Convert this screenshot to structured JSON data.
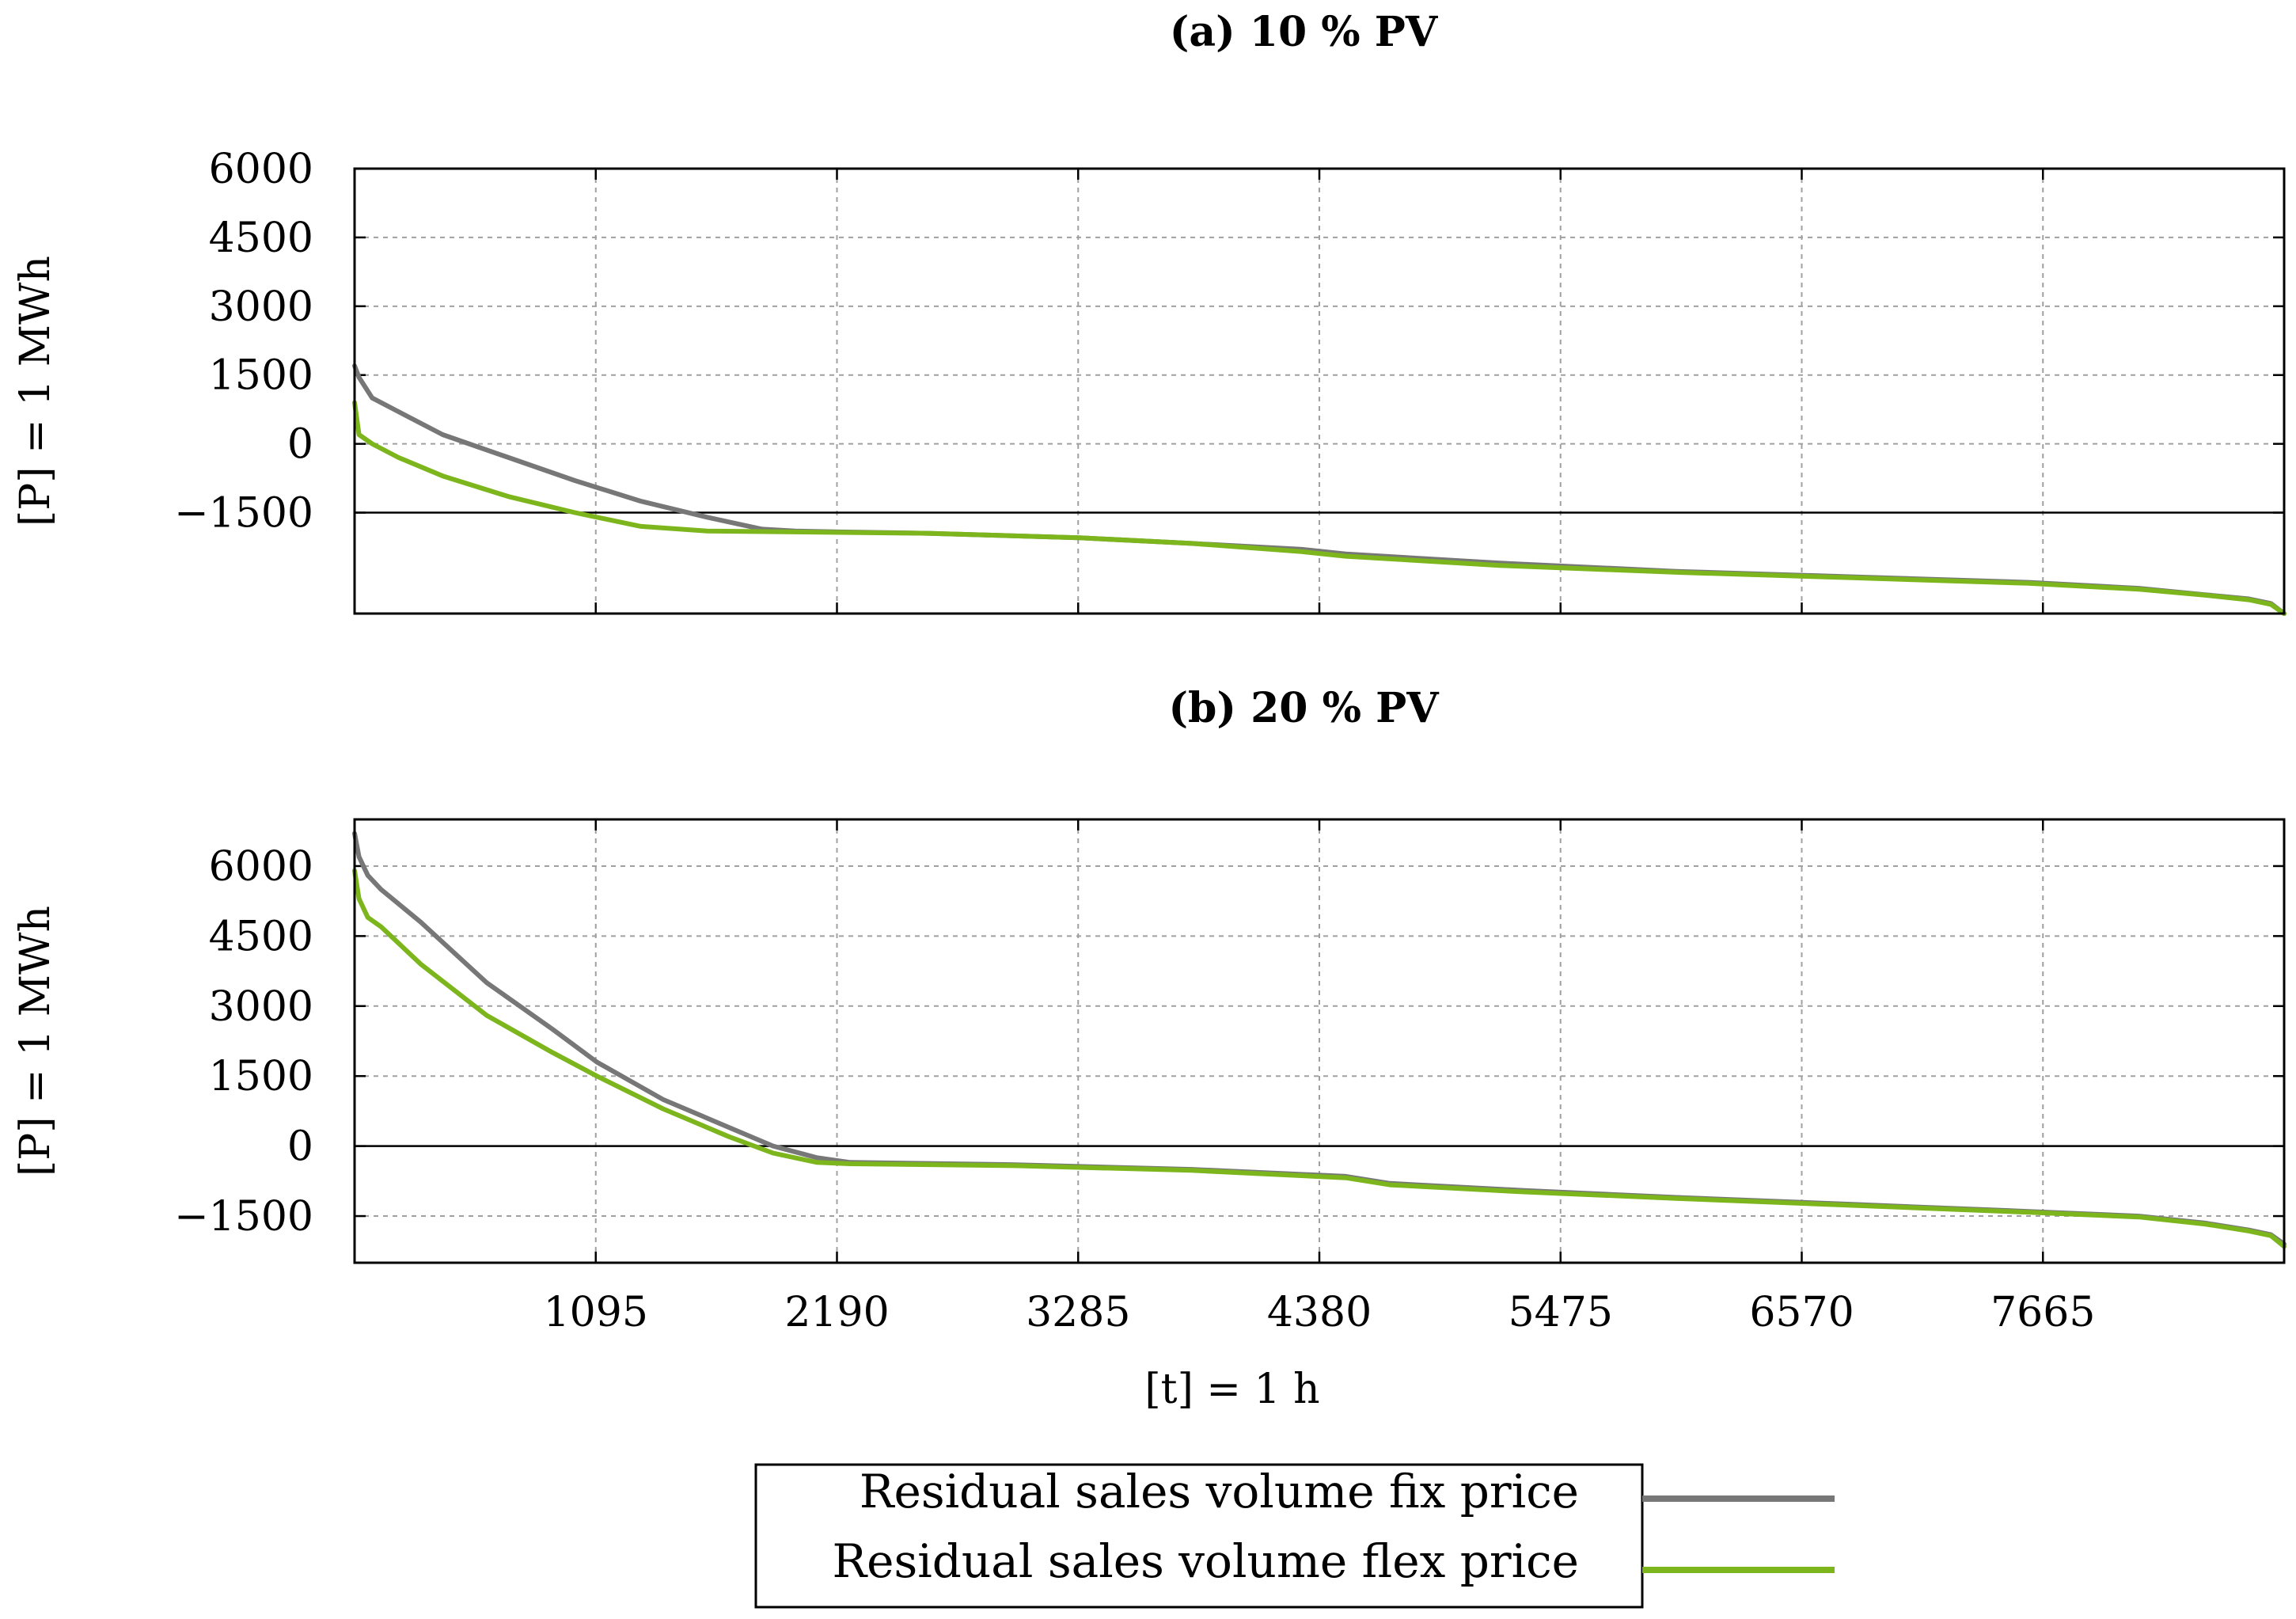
{
  "chart_data": [
    {
      "type": "line",
      "title": "(a) 10 % PV",
      "xlabel": "",
      "ylabel": "[P] = 1 MWh",
      "xlim": [
        0,
        8760
      ],
      "ylim": [
        -3700,
        6000
      ],
      "yticks": [
        6000,
        4500,
        3000,
        1500,
        0,
        -1500
      ],
      "ytick_labels": [
        "6000",
        "4500",
        "3000",
        "1500",
        "0",
        "−1500"
      ],
      "xticks": [
        1095,
        2190,
        3285,
        4380,
        5475,
        6570,
        7665
      ],
      "show_xtick_labels": false,
      "zero_line": -1500,
      "series": [
        {
          "name": "Residual sales volume fix price",
          "color": "#777777",
          "x": [
            0,
            20,
            80,
            200,
            400,
            700,
            1000,
            1300,
            1600,
            1850,
            2000,
            2200,
            2600,
            3300,
            3800,
            4300,
            4500,
            5200,
            6000,
            6800,
            7600,
            8100,
            8400,
            8600,
            8700,
            8760
          ],
          "y": [
            1700,
            1450,
            1000,
            700,
            200,
            -300,
            -800,
            -1250,
            -1600,
            -1860,
            -1900,
            -1920,
            -1950,
            -2050,
            -2170,
            -2300,
            -2400,
            -2600,
            -2780,
            -2900,
            -3020,
            -3150,
            -3290,
            -3380,
            -3480,
            -3700
          ]
        },
        {
          "name": "Residual sales volume flex price",
          "color": "#7cb61c",
          "x": [
            0,
            20,
            80,
            200,
            400,
            700,
            1000,
            1300,
            1600,
            2000,
            2600,
            3300,
            3800,
            4300,
            4500,
            5200,
            6000,
            6800,
            7600,
            8100,
            8400,
            8600,
            8700,
            8760
          ],
          "y": [
            900,
            200,
            0,
            -300,
            -700,
            -1150,
            -1500,
            -1800,
            -1900,
            -1920,
            -1950,
            -2050,
            -2170,
            -2350,
            -2450,
            -2650,
            -2800,
            -2920,
            -3040,
            -3170,
            -3300,
            -3400,
            -3500,
            -3700
          ]
        }
      ]
    },
    {
      "type": "line",
      "title": "(b) 20 % PV",
      "xlabel": "[t] = 1 h",
      "ylabel": "[P] = 1 MWh",
      "xlim": [
        0,
        8760
      ],
      "ylim": [
        -2500,
        7000
      ],
      "yticks": [
        6000,
        4500,
        3000,
        1500,
        0,
        -1500
      ],
      "ytick_labels": [
        "6000",
        "4500",
        "3000",
        "1500",
        "0",
        "−1500"
      ],
      "xticks": [
        1095,
        2190,
        3285,
        4380,
        5475,
        6570,
        7665
      ],
      "show_xtick_labels": true,
      "xtick_labels": [
        "1095",
        "2190",
        "3285",
        "4380",
        "5475",
        "6570",
        "7665"
      ],
      "zero_line": 0,
      "series": [
        {
          "name": "Residual sales volume fix price",
          "color": "#777777",
          "x": [
            0,
            20,
            60,
            120,
            300,
            600,
            900,
            1100,
            1400,
            1700,
            1900,
            2100,
            2250,
            3000,
            3800,
            4500,
            4700,
            5300,
            6000,
            6800,
            7600,
            8100,
            8400,
            8600,
            8700,
            8760
          ],
          "y": [
            6700,
            6200,
            5800,
            5500,
            4800,
            3500,
            2500,
            1800,
            1000,
            400,
            0,
            -250,
            -350,
            -400,
            -500,
            -650,
            -800,
            -950,
            -1100,
            -1250,
            -1400,
            -1500,
            -1650,
            -1800,
            -1900,
            -2100
          ]
        },
        {
          "name": "Residual sales volume flex price",
          "color": "#7cb61c",
          "x": [
            0,
            20,
            60,
            120,
            300,
            600,
            900,
            1100,
            1400,
            1700,
            1900,
            2100,
            2250,
            3000,
            3800,
            4500,
            4700,
            5300,
            6000,
            6800,
            7600,
            8100,
            8400,
            8600,
            8700,
            8760
          ],
          "y": [
            5900,
            5300,
            4900,
            4700,
            3900,
            2800,
            2000,
            1500,
            800,
            200,
            -150,
            -350,
            -380,
            -420,
            -520,
            -680,
            -830,
            -980,
            -1120,
            -1270,
            -1420,
            -1520,
            -1670,
            -1820,
            -1920,
            -2150
          ]
        }
      ]
    }
  ],
  "legend": {
    "placement": "bottom-center",
    "entries": [
      {
        "label": "Residual sales volume fix price",
        "color": "#777777"
      },
      {
        "label": "Residual sales volume flex price",
        "color": "#7cb61c"
      }
    ]
  }
}
